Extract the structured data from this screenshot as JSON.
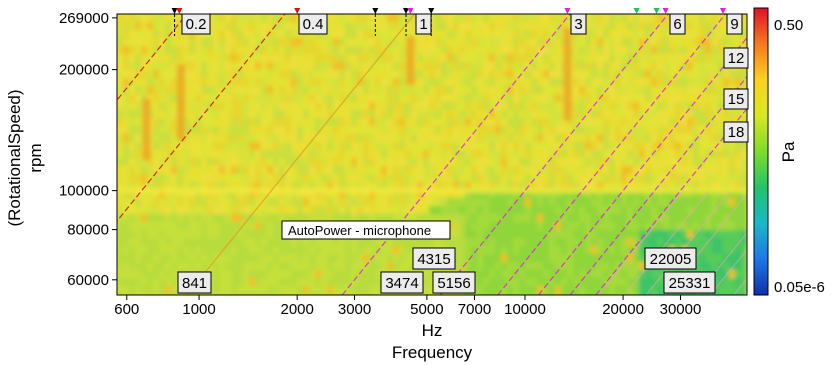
{
  "chart_data": {
    "type": "heatmap",
    "title": "",
    "annotation": "AutoPower - microphone",
    "xlabel": "Frequency",
    "xunit": "Hz",
    "ylabel": "(RotationalSpeed)",
    "yunit": "rpm",
    "x_scale": "log",
    "y_scale": "log",
    "xlim": [
      560,
      48000
    ],
    "ylim": [
      55000,
      275000
    ],
    "x_ticks": [
      600,
      1000,
      2000,
      3000,
      5000,
      7000,
      10000,
      20000,
      30000
    ],
    "x_tick_labels": [
      "600",
      "1000",
      "2000",
      "3000",
      "5000",
      "7000",
      "10000",
      "20000",
      "30000"
    ],
    "y_ticks": [
      60000,
      80000,
      100000,
      200000,
      269000
    ],
    "y_tick_labels": [
      "60000",
      "80000",
      "100000",
      "200000",
      "269000"
    ],
    "colorbar": {
      "label": "Pa",
      "scale": "log",
      "max_label": "0.50",
      "min_label": "0.05e-6",
      "colors": [
        "#e0102a",
        "#f47a1e",
        "#fbd21e",
        "#d8e81e",
        "#7fdc2a",
        "#22c36a",
        "#18b8c8",
        "#1e78e8",
        "#1030a8"
      ]
    },
    "order_lines": [
      {
        "order": "0.2",
        "color": "#cc1010",
        "dashed": true
      },
      {
        "order": "0.4",
        "color": "#cc1010",
        "dashed": true
      },
      {
        "order": "1",
        "color": "#e0a020",
        "dashed": false
      },
      {
        "order": "3",
        "color": "#e020e0",
        "dashed": true
      },
      {
        "order": "6",
        "color": "#e020e0",
        "dashed": true
      },
      {
        "order": "9",
        "color": "#e020e0",
        "dashed": true
      },
      {
        "order": "12",
        "color": "#e020e0",
        "dashed": true
      },
      {
        "order": "15",
        "color": "#e020e0",
        "dashed": true
      },
      {
        "order": "18",
        "color": "#e020e0",
        "dashed": true
      }
    ],
    "order_labels": [
      "0.2",
      "0.4",
      "1",
      "3",
      "6",
      "9",
      "12",
      "15",
      "18"
    ],
    "frequency_labels": [
      {
        "label": "841",
        "hz": 841
      },
      {
        "label": "3474",
        "hz": 3474
      },
      {
        "label": "4315",
        "hz": 4315
      },
      {
        "label": "5156",
        "hz": 5156
      },
      {
        "label": "22005",
        "hz": 22005
      },
      {
        "label": "25331",
        "hz": 25331
      }
    ],
    "cursor_marks": [
      {
        "hz": 841,
        "color": "#000000"
      },
      {
        "hz": 870,
        "color": "#e01010"
      },
      {
        "hz": 2000,
        "color": "#e01010"
      },
      {
        "hz": 3474,
        "color": "#000000"
      },
      {
        "hz": 4315,
        "color": "#000000"
      },
      {
        "hz": 4450,
        "color": "#e020e0"
      },
      {
        "hz": 5156,
        "color": "#000000"
      },
      {
        "hz": 13500,
        "color": "#e020e0"
      },
      {
        "hz": 22005,
        "color": "#20c060"
      },
      {
        "hz": 25331,
        "color": "#20c060"
      },
      {
        "hz": 27000,
        "color": "#e020e0"
      },
      {
        "hz": 40500,
        "color": "#e020e0"
      }
    ],
    "grid": false,
    "legend": "none"
  }
}
